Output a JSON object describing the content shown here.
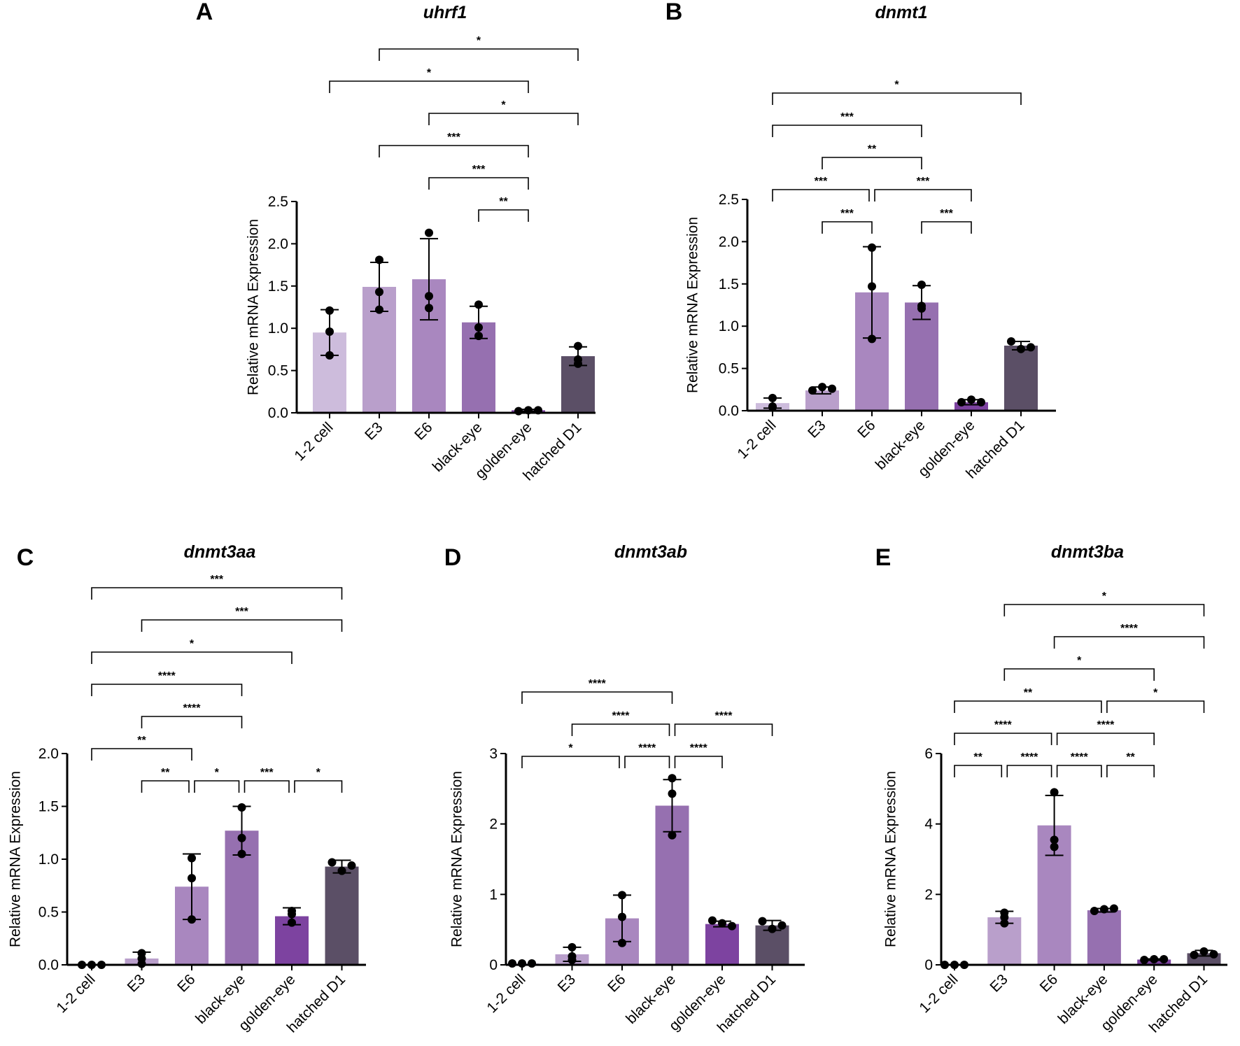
{
  "colors": {
    "bars": [
      "#cdbcdc",
      "#b99fcb",
      "#a987bf",
      "#9670b0",
      "#7d43a0",
      "#5b4f66"
    ],
    "ink": "#000000"
  },
  "chart_data": [
    {
      "type": "bar",
      "panel": "A",
      "title": "uhrf1",
      "ylabel": "Relative mRNA Expression",
      "categories": [
        "1-2 cell",
        "E3",
        "E6",
        "black-eye",
        "golden-eye",
        "hatched D1"
      ],
      "ylim": [
        0,
        2.5
      ],
      "yticks": [
        "0.0",
        "0.5",
        "1.0",
        "1.5",
        "2.0",
        "2.5"
      ],
      "ytick_values": [
        0,
        0.5,
        1,
        1.5,
        2,
        2.5
      ],
      "values": [
        0.95,
        1.49,
        1.58,
        1.07,
        0.03,
        0.67
      ],
      "errors": [
        0.27,
        0.29,
        0.48,
        0.19,
        0.01,
        0.11
      ],
      "points": [
        [
          1.21,
          0.96,
          0.68
        ],
        [
          1.81,
          1.43,
          1.22
        ],
        [
          2.13,
          1.38,
          1.24
        ],
        [
          1.28,
          1.01,
          0.91
        ],
        [
          0.02,
          0.03,
          0.03
        ],
        [
          0.79,
          0.58,
          0.63
        ]
      ],
      "significance": [
        {
          "from": "E3",
          "to": "hatched D1",
          "label": "*"
        },
        {
          "from": "1-2 cell",
          "to": "golden-eye",
          "label": "*"
        },
        {
          "from": "E6",
          "to": "hatched D1",
          "label": "*"
        },
        {
          "from": "E3",
          "to": "golden-eye",
          "label": "***"
        },
        {
          "from": "E6",
          "to": "golden-eye",
          "label": "***"
        },
        {
          "from": "black-eye",
          "to": "golden-eye",
          "label": "**"
        }
      ]
    },
    {
      "type": "bar",
      "panel": "B",
      "title": "dnmt1",
      "ylabel": "Relative mRNA Expression",
      "categories": [
        "1-2 cell",
        "E3",
        "E6",
        "black-eye",
        "golden-eye",
        "hatched D1"
      ],
      "ylim": [
        0,
        2.5
      ],
      "yticks": [
        "0.0",
        "0.5",
        "1.0",
        "1.5",
        "2.0",
        "2.5"
      ],
      "ytick_values": [
        0,
        0.5,
        1,
        1.5,
        2,
        2.5
      ],
      "values": [
        0.09,
        0.24,
        1.4,
        1.28,
        0.1,
        0.77
      ],
      "errors": [
        0.06,
        0.04,
        0.54,
        0.2,
        0.03,
        0.05
      ],
      "points": [
        [
          0.15,
          0.04,
          0.05
        ],
        [
          0.24,
          0.28,
          0.26
        ],
        [
          1.93,
          1.47,
          0.85
        ],
        [
          1.49,
          1.21,
          1.24
        ],
        [
          0.1,
          0.13,
          0.1
        ],
        [
          0.82,
          0.73,
          0.75
        ]
      ],
      "significance": [
        {
          "from": "1-2 cell",
          "to": "hatched D1",
          "label": "*"
        },
        {
          "from": "1-2 cell",
          "to": "black-eye",
          "label": "***"
        },
        {
          "from": "E3",
          "to": "black-eye",
          "label": "**"
        },
        {
          "from": "1-2 cell",
          "to": "E6",
          "label": "***"
        },
        {
          "from": "E6",
          "to": "golden-eye",
          "label": "***"
        },
        {
          "from": "E3",
          "to": "E6",
          "label": "***"
        },
        {
          "from": "black-eye",
          "to": "golden-eye",
          "label": "***"
        }
      ]
    },
    {
      "type": "bar",
      "panel": "C",
      "title": "dnmt3aa",
      "ylabel": "Relative mRNA Expression",
      "categories": [
        "1-2 cell",
        "E3",
        "E6",
        "black-eye",
        "golden-eye",
        "hatched D1"
      ],
      "ylim": [
        0,
        2.0
      ],
      "yticks": [
        "0.0",
        "0.5",
        "1.0",
        "1.5",
        "2.0"
      ],
      "ytick_values": [
        0,
        0.5,
        1,
        1.5,
        2
      ],
      "values": [
        0.0,
        0.06,
        0.74,
        1.27,
        0.46,
        0.93
      ],
      "errors": [
        0.0,
        0.06,
        0.31,
        0.23,
        0.08,
        0.06
      ],
      "points": [
        [
          0,
          0,
          0
        ],
        [
          0.11,
          0.01,
          0.06
        ],
        [
          1.01,
          0.82,
          0.43
        ],
        [
          1.49,
          1.2,
          1.05
        ],
        [
          0.51,
          0.4,
          0.48
        ],
        [
          0.97,
          0.89,
          0.94
        ]
      ],
      "significance": [
        {
          "from": "1-2 cell",
          "to": "hatched D1",
          "label": "***"
        },
        {
          "from": "E3",
          "to": "hatched D1",
          "label": "***"
        },
        {
          "from": "1-2 cell",
          "to": "golden-eye",
          "label": "*"
        },
        {
          "from": "1-2 cell",
          "to": "black-eye",
          "label": "****"
        },
        {
          "from": "E3",
          "to": "black-eye",
          "label": "****"
        },
        {
          "from": "1-2 cell",
          "to": "E6",
          "label": "**"
        },
        {
          "from": "E3",
          "to": "E6",
          "label": "**"
        },
        {
          "from": "E6",
          "to": "black-eye",
          "label": "*"
        },
        {
          "from": "black-eye",
          "to": "golden-eye",
          "label": "***"
        },
        {
          "from": "golden-eye",
          "to": "hatched D1",
          "label": "*"
        }
      ]
    },
    {
      "type": "bar",
      "panel": "D",
      "title": "dnmt3ab",
      "ylabel": "Relative mRNA Expression",
      "categories": [
        "1-2 cell",
        "E3",
        "E6",
        "black-eye",
        "golden-eye",
        "hatched D1"
      ],
      "ylim": [
        0,
        3
      ],
      "yticks": [
        "0",
        "1",
        "2",
        "3"
      ],
      "ytick_values": [
        0,
        1,
        2,
        3
      ],
      "values": [
        0.02,
        0.15,
        0.66,
        2.26,
        0.58,
        0.56
      ],
      "errors": [
        0.0,
        0.1,
        0.33,
        0.37,
        0.04,
        0.07
      ],
      "points": [
        [
          0.02,
          0.02,
          0.02
        ],
        [
          0.25,
          0.07,
          0.12
        ],
        [
          0.99,
          0.68,
          0.31
        ],
        [
          2.65,
          2.43,
          1.84
        ],
        [
          0.63,
          0.59,
          0.55
        ],
        [
          0.62,
          0.51,
          0.56
        ]
      ],
      "significance": [
        {
          "from": "1-2 cell",
          "to": "black-eye",
          "label": "****"
        },
        {
          "from": "E3",
          "to": "black-eye",
          "label": "****"
        },
        {
          "from": "black-eye",
          "to": "hatched D1",
          "label": "****"
        },
        {
          "from": "1-2 cell",
          "to": "E6",
          "label": "*"
        },
        {
          "from": "E6",
          "to": "black-eye",
          "label": "****"
        },
        {
          "from": "black-eye",
          "to": "golden-eye",
          "label": "****"
        }
      ]
    },
    {
      "type": "bar",
      "panel": "E",
      "title": "dnmt3ba",
      "ylabel": "Relative mRNA Expression",
      "categories": [
        "1-2 cell",
        "E3",
        "E6",
        "black-eye",
        "golden-eye",
        "hatched D1"
      ],
      "ylim": [
        0,
        6
      ],
      "yticks": [
        "0",
        "2",
        "4",
        "6"
      ],
      "ytick_values": [
        0,
        2,
        4,
        6
      ],
      "values": [
        0.01,
        1.35,
        3.96,
        1.55,
        0.15,
        0.33
      ],
      "errors": [
        0.0,
        0.17,
        0.85,
        0.05,
        0.02,
        0.08
      ],
      "points": [
        [
          0,
          0,
          0
        ],
        [
          1.48,
          1.18,
          1.35
        ],
        [
          4.9,
          3.55,
          3.35
        ],
        [
          1.53,
          1.58,
          1.6
        ],
        [
          0.14,
          0.16,
          0.16
        ],
        [
          0.28,
          0.38,
          0.3
        ]
      ],
      "significance": [
        {
          "from": "E3",
          "to": "hatched D1",
          "label": "*"
        },
        {
          "from": "E6",
          "to": "hatched D1",
          "label": "****"
        },
        {
          "from": "E3",
          "to": "golden-eye",
          "label": "*"
        },
        {
          "from": "1-2 cell",
          "to": "black-eye",
          "label": "**"
        },
        {
          "from": "black-eye",
          "to": "hatched D1",
          "label": "*"
        },
        {
          "from": "1-2 cell",
          "to": "E6",
          "label": "****"
        },
        {
          "from": "E6",
          "to": "golden-eye",
          "label": "****"
        },
        {
          "from": "1-2 cell",
          "to": "E3",
          "label": "**"
        },
        {
          "from": "E3",
          "to": "E6",
          "label": "****"
        },
        {
          "from": "E6",
          "to": "black-eye",
          "label": "****"
        },
        {
          "from": "black-eye",
          "to": "golden-eye",
          "label": "**"
        }
      ]
    }
  ]
}
